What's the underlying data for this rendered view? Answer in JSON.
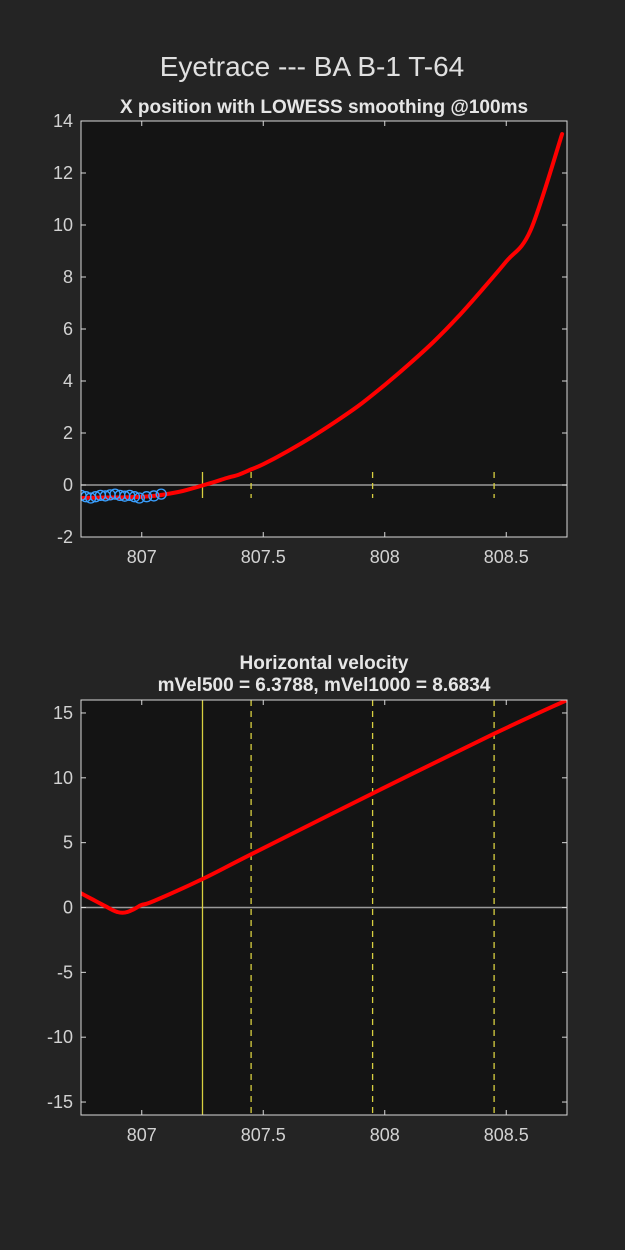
{
  "figure": {
    "title": "Eyetrace --- BA B-1 T-64",
    "colors": {
      "background": "#242424",
      "axes": "#141414",
      "trace": "#ff0000",
      "marker": "#3aa0ff",
      "zero": "#9a9a9a",
      "event": "#d8d040"
    }
  },
  "chart_data": [
    {
      "type": "line",
      "title": "X position with LOWESS smoothing @100ms",
      "xlabel": "",
      "ylabel": "",
      "xlim": [
        806.75,
        808.75
      ],
      "ylim": [
        -2,
        14
      ],
      "xticks": [
        "807",
        "807.5",
        "808",
        "808.5"
      ],
      "yticks": [
        "-2",
        "0",
        "2",
        "4",
        "6",
        "8",
        "10",
        "12",
        "14"
      ],
      "grid": false,
      "series": [
        {
          "style": "smoothed-line",
          "x": [
            806.75,
            806.85,
            806.95,
            807.05,
            807.15,
            807.2,
            807.25,
            807.3,
            807.35,
            807.4,
            807.45,
            807.5,
            807.6,
            807.7,
            807.8,
            807.9,
            808.0,
            808.1,
            808.2,
            808.3,
            808.4,
            808.5,
            808.6,
            808.73
          ],
          "y": [
            -0.5,
            -0.48,
            -0.47,
            -0.42,
            -0.27,
            -0.15,
            -0.02,
            0.12,
            0.27,
            0.4,
            0.6,
            0.8,
            1.3,
            1.85,
            2.45,
            3.1,
            3.85,
            4.65,
            5.5,
            6.45,
            7.5,
            8.6,
            9.8,
            13.5
          ]
        },
        {
          "style": "markers",
          "x": [
            806.75,
            806.77,
            806.79,
            806.81,
            806.83,
            806.85,
            806.87,
            806.89,
            806.91,
            806.93,
            806.95,
            806.97,
            806.99,
            807.02,
            807.05,
            807.08
          ],
          "y": [
            -0.4,
            -0.45,
            -0.5,
            -0.45,
            -0.4,
            -0.42,
            -0.38,
            -0.35,
            -0.4,
            -0.43,
            -0.4,
            -0.45,
            -0.5,
            -0.45,
            -0.42,
            -0.35
          ]
        }
      ],
      "hlines": [
        0
      ],
      "event_lines": [
        {
          "x": 807.25,
          "style": "solid"
        },
        {
          "x": 807.45,
          "style": "dashed"
        },
        {
          "x": 807.95,
          "style": "dashed"
        },
        {
          "x": 808.45,
          "style": "dashed"
        }
      ]
    },
    {
      "type": "line",
      "title": "Horizontal velocity",
      "subtitle": "mVel500 = 6.3788, mVel1000 = 8.6834",
      "xlabel": "",
      "ylabel": "",
      "xlim": [
        806.75,
        808.75
      ],
      "ylim": [
        -16,
        16
      ],
      "xticks": [
        "807",
        "807.5",
        "808",
        "808.5"
      ],
      "yticks": [
        "-15",
        "-10",
        "-5",
        "0",
        "5",
        "10",
        "15"
      ],
      "grid": false,
      "series": [
        {
          "style": "smoothed-line",
          "x": [
            806.75,
            806.8,
            806.85,
            806.88,
            806.9,
            806.92,
            806.94,
            806.96,
            806.98,
            807.0,
            807.05,
            807.25,
            807.45,
            807.95,
            808.45,
            808.75
          ],
          "y": [
            1.1,
            0.6,
            0.1,
            -0.2,
            -0.35,
            -0.4,
            -0.35,
            -0.2,
            0.0,
            0.2,
            0.5,
            2.2,
            4.1,
            8.8,
            13.4,
            16.0
          ]
        }
      ],
      "hlines": [
        0
      ],
      "event_lines": [
        {
          "x": 807.25,
          "style": "solid"
        },
        {
          "x": 807.45,
          "style": "dashed"
        },
        {
          "x": 807.95,
          "style": "dashed"
        },
        {
          "x": 808.45,
          "style": "dashed"
        }
      ]
    }
  ]
}
